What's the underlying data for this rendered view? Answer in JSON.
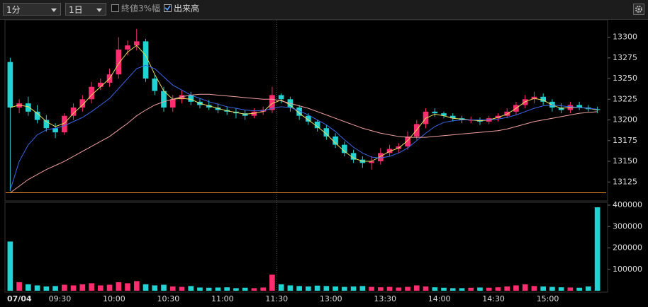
{
  "toolbar": {
    "interval": "1分",
    "range": "1日",
    "option_range": "終値3%幅",
    "option_volume": "出来高"
  },
  "chart_data": [
    {
      "type": "candlestick",
      "categories": [
        "07/04",
        null,
        null,
        null,
        null,
        null,
        "09:30",
        null,
        null,
        null,
        null,
        null,
        "10:00",
        null,
        null,
        null,
        null,
        null,
        "10:30",
        null,
        null,
        null,
        null,
        null,
        "11:00",
        null,
        null,
        null,
        null,
        null,
        "11:30",
        null,
        null,
        null,
        null,
        null,
        "13:00",
        null,
        null,
        null,
        null,
        null,
        "13:30",
        null,
        null,
        null,
        null,
        null,
        "14:00",
        null,
        null,
        null,
        null,
        null,
        "14:30",
        null,
        null,
        null,
        null,
        null,
        "15:00",
        null,
        null,
        null,
        null,
        null
      ],
      "open": [
        13270,
        13215,
        13220,
        13210,
        13200,
        13190,
        13185,
        13205,
        13215,
        13225,
        13240,
        13245,
        13255,
        13285,
        13290,
        13295,
        13250,
        13235,
        13215,
        13225,
        13230,
        13222,
        13218,
        13215,
        13212,
        13210,
        13208,
        13205,
        13210,
        13212,
        13230,
        13225,
        13215,
        13205,
        13198,
        13190,
        13180,
        13170,
        13160,
        13152,
        13148,
        13150,
        13160,
        13165,
        13168,
        13180,
        13195,
        13210,
        13208,
        13205,
        13202,
        13200,
        13200,
        13198,
        13202,
        13205,
        13210,
        13218,
        13225,
        13228,
        13222,
        13215,
        13212,
        13218,
        13215,
        13213
      ],
      "high": [
        13275,
        13225,
        13228,
        13218,
        13206,
        13196,
        13208,
        13220,
        13230,
        13246,
        13250,
        13262,
        13300,
        13296,
        13310,
        13298,
        13255,
        13240,
        13230,
        13236,
        13234,
        13226,
        13224,
        13220,
        13216,
        13214,
        13212,
        13214,
        13216,
        13240,
        13232,
        13228,
        13218,
        13208,
        13200,
        13194,
        13184,
        13174,
        13164,
        13156,
        13156,
        13166,
        13170,
        13172,
        13186,
        13200,
        13214,
        13214,
        13210,
        13208,
        13205,
        13204,
        13203,
        13205,
        13208,
        13214,
        13222,
        13230,
        13234,
        13232,
        13225,
        13220,
        13222,
        13222,
        13218,
        13216
      ],
      "low": [
        13114,
        13208,
        13205,
        13196,
        13186,
        13178,
        13182,
        13200,
        13210,
        13220,
        13236,
        13240,
        13250,
        13278,
        13284,
        13246,
        13230,
        13210,
        13210,
        13220,
        13218,
        13214,
        13212,
        13208,
        13206,
        13202,
        13200,
        13202,
        13206,
        13208,
        13220,
        13210,
        13200,
        13194,
        13186,
        13176,
        13166,
        13156,
        13148,
        13142,
        13140,
        13146,
        13156,
        13160,
        13164,
        13176,
        13190,
        13204,
        13202,
        13198,
        13196,
        13196,
        13194,
        13195,
        13198,
        13202,
        13206,
        13214,
        13220,
        13218,
        13210,
        13208,
        13208,
        13212,
        13210,
        13208
      ],
      "close": [
        13215,
        13220,
        13210,
        13200,
        13190,
        13185,
        13205,
        13215,
        13225,
        13240,
        13245,
        13255,
        13285,
        13290,
        13295,
        13250,
        13235,
        13215,
        13225,
        13230,
        13222,
        13218,
        13215,
        13212,
        13210,
        13208,
        13205,
        13210,
        13212,
        13230,
        13225,
        13215,
        13205,
        13198,
        13190,
        13180,
        13170,
        13160,
        13152,
        13148,
        13150,
        13160,
        13165,
        13168,
        13180,
        13195,
        13210,
        13208,
        13205,
        13202,
        13200,
        13200,
        13198,
        13202,
        13205,
        13210,
        13218,
        13225,
        13228,
        13222,
        13215,
        13212,
        13218,
        13215,
        13213,
        13212
      ],
      "up_color": "#ff2d6f",
      "down_color": "#22d3d3",
      "series": [
        {
          "color": "#e6dc5a",
          "values": [
            13215,
            13218,
            13216,
            13208,
            13198,
            13192,
            13196,
            13208,
            13218,
            13230,
            13240,
            13250,
            13268,
            13282,
            13290,
            13278,
            13255,
            13235,
            13225,
            13226,
            13225,
            13220,
            13217,
            13214,
            13211,
            13209,
            13207,
            13208,
            13210,
            13220,
            13224,
            13218,
            13208,
            13200,
            13192,
            13183,
            13172,
            13162,
            13154,
            13150,
            13150,
            13156,
            13162,
            13166,
            13175,
            13188,
            13202,
            13207,
            13205,
            13202,
            13201,
            13200,
            13199,
            13200,
            13203,
            13207,
            13214,
            13222,
            13226,
            13224,
            13218,
            13214,
            13215,
            13215,
            13214,
            13212
          ]
        },
        {
          "color": "#3a66e8",
          "values": [
            13115,
            13150,
            13170,
            13182,
            13188,
            13190,
            13193,
            13198,
            13203,
            13210,
            13218,
            13226,
            13238,
            13250,
            13262,
            13266,
            13262,
            13252,
            13242,
            13236,
            13230,
            13226,
            13222,
            13219,
            13216,
            13214,
            13212,
            13211,
            13211,
            13214,
            13216,
            13215,
            13211,
            13206,
            13200,
            13194,
            13186,
            13176,
            13167,
            13160,
            13155,
            13154,
            13156,
            13160,
            13166,
            13175,
            13184,
            13192,
            13197,
            13199,
            13200,
            13200,
            13200,
            13200,
            13201,
            13203,
            13206,
            13210,
            13214,
            13217,
            13218,
            13217,
            13216,
            13215,
            13214,
            13213
          ]
        },
        {
          "color": "#f0a0a0",
          "values": [
            13112,
            13120,
            13128,
            13134,
            13140,
            13145,
            13150,
            13156,
            13162,
            13168,
            13174,
            13180,
            13188,
            13196,
            13205,
            13212,
            13218,
            13222,
            13225,
            13228,
            13230,
            13231,
            13231,
            13230,
            13229,
            13228,
            13227,
            13226,
            13225,
            13225,
            13223,
            13220,
            13217,
            13214,
            13210,
            13206,
            13202,
            13198,
            13194,
            13190,
            13187,
            13184,
            13182,
            13180,
            13179,
            13179,
            13179,
            13180,
            13181,
            13182,
            13183,
            13184,
            13185,
            13186,
            13187,
            13189,
            13192,
            13195,
            13198,
            13200,
            13202,
            13204,
            13206,
            13208,
            13209,
            13210
          ]
        }
      ],
      "hline": {
        "value": 13112,
        "color": "#e88a2a"
      },
      "ylim": [
        13103,
        13321
      ],
      "yticks": [
        13125,
        13150,
        13175,
        13200,
        13225,
        13250,
        13275,
        13300
      ]
    },
    {
      "type": "bar",
      "values": [
        230000,
        40000,
        30000,
        25000,
        20000,
        22000,
        28000,
        25000,
        30000,
        35000,
        25000,
        28000,
        40000,
        35000,
        45000,
        30000,
        25000,
        28000,
        20000,
        18000,
        22000,
        15000,
        14000,
        15000,
        16000,
        12000,
        14000,
        12000,
        15000,
        75000,
        30000,
        25000,
        22000,
        20000,
        24000,
        22000,
        20000,
        18000,
        20000,
        22000,
        18000,
        16000,
        18000,
        15000,
        18000,
        25000,
        20000,
        16000,
        14000,
        12000,
        12000,
        14000,
        15000,
        14000,
        16000,
        20000,
        25000,
        30000,
        22000,
        20000,
        18000,
        16000,
        15000,
        14000,
        20000,
        390000
      ],
      "ylim": [
        0,
        410000
      ],
      "yticks": [
        100000,
        200000,
        300000,
        400000
      ]
    }
  ]
}
